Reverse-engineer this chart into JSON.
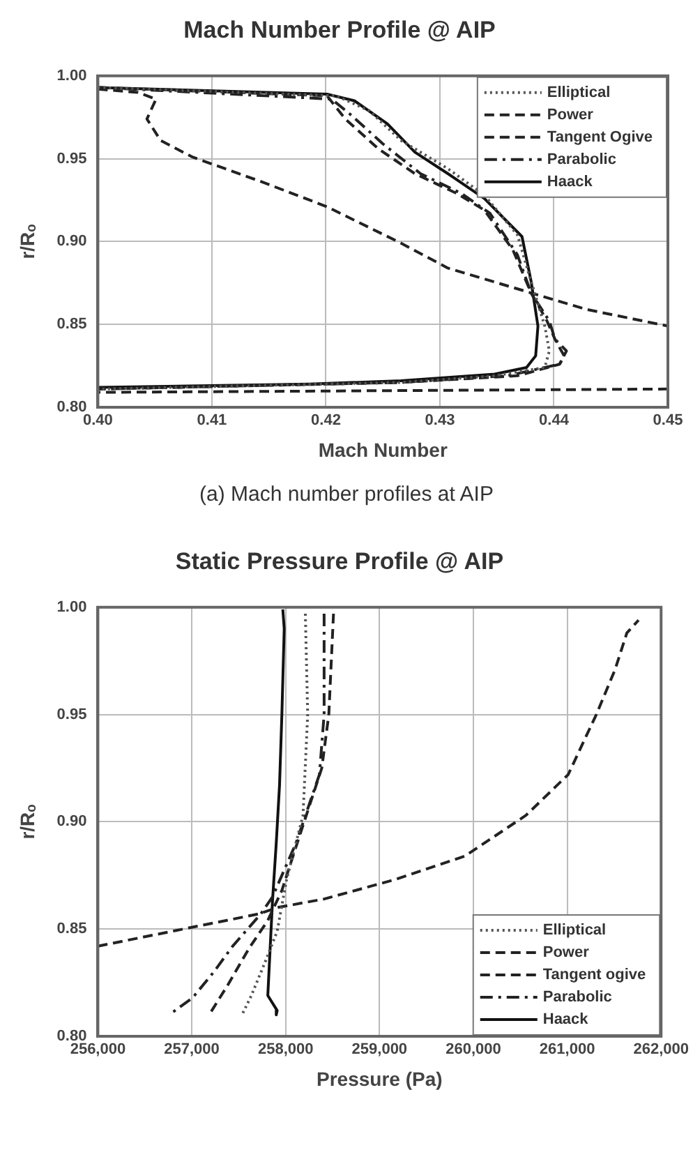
{
  "chart_data": [
    {
      "type": "line",
      "title": "Mach Number Profile @ AIP",
      "xlabel": "Mach Number",
      "ylabel": "r/Rₒ",
      "annotations": [
        "(a) Mach number profiles at AIP"
      ],
      "xlim": [
        0.4,
        0.45
      ],
      "ylim": [
        0.8,
        1.0
      ],
      "xticks": [
        {
          "value": 0.4,
          "label": "0.40"
        },
        {
          "value": 0.41,
          "label": "0.41"
        },
        {
          "value": 0.42,
          "label": "0.42"
        },
        {
          "value": 0.43,
          "label": "0.43"
        },
        {
          "value": 0.44,
          "label": "0.44"
        },
        {
          "value": 0.45,
          "label": "0.45"
        }
      ],
      "yticks": [
        {
          "value": 0.8,
          "label": "0.80"
        },
        {
          "value": 0.85,
          "label": "0.85"
        },
        {
          "value": 0.9,
          "label": "0.90"
        },
        {
          "value": 0.95,
          "label": "0.95"
        },
        {
          "value": 1.0,
          "label": "1.00"
        }
      ],
      "grid": true,
      "legend": "top right",
      "marker": "none",
      "series": [
        {
          "name": "Elliptical",
          "color": "#555555",
          "line_style": "dotted",
          "x": [
            0.4,
            0.4209,
            0.4238,
            0.4266,
            0.4307,
            0.4339,
            0.4368,
            0.438,
            0.4392,
            0.4396,
            0.4392,
            0.4348,
            0.4266,
            0.4
          ],
          "values": [
            0.993,
            0.988,
            0.979,
            0.961,
            0.944,
            0.928,
            0.904,
            0.876,
            0.849,
            0.834,
            0.824,
            0.819,
            0.815,
            0.811
          ]
        },
        {
          "name": "Power",
          "color": "#222222",
          "line_style": "dashed",
          "x": [
            0.4,
            0.4035,
            0.4051,
            0.4043,
            0.4055,
            0.4083,
            0.4144,
            0.4201,
            0.4266,
            0.4307,
            0.438,
            0.4429,
            0.45,
            null,
            0.45,
            0.4
          ],
          "values": [
            0.992,
            0.99,
            0.986,
            0.974,
            0.961,
            0.951,
            0.936,
            0.921,
            0.899,
            0.884,
            0.869,
            0.859,
            0.849,
            null,
            0.811,
            0.809
          ]
        },
        {
          "name": "Tangent Ogive",
          "color": "#222222",
          "line_style": "dashed",
          "x": [
            0.4,
            0.4201,
            0.4217,
            0.4246,
            0.4278,
            0.4315,
            0.4339,
            0.4364,
            0.438,
            0.4394,
            0.4401,
            0.4409,
            0.4405,
            0.4368,
            0.4266,
            0.4
          ],
          "values": [
            0.993,
            0.988,
            0.974,
            0.956,
            0.941,
            0.929,
            0.919,
            0.895,
            0.869,
            0.852,
            0.841,
            0.831,
            0.826,
            0.819,
            0.815,
            0.811
          ]
        },
        {
          "name": "Parabolic",
          "color": "#222222",
          "line_style": "dashdot",
          "x": [
            0.4,
            0.4205,
            0.4221,
            0.425,
            0.4283,
            0.4319,
            0.4344,
            0.4368,
            0.438,
            0.4396,
            0.4401,
            0.4411,
            0.4405,
            0.4359,
            0.4266,
            0.4
          ],
          "values": [
            0.993,
            0.986,
            0.977,
            0.959,
            0.941,
            0.929,
            0.917,
            0.892,
            0.869,
            0.852,
            0.841,
            0.834,
            0.826,
            0.819,
            0.815,
            0.811
          ]
        },
        {
          "name": "Haack",
          "color": "#111111",
          "line_style": "solid",
          "x": [
            0.4,
            0.4201,
            0.4225,
            0.4254,
            0.4278,
            0.4307,
            0.4339,
            0.4372,
            0.438,
            0.4386,
            0.4384,
            0.4376,
            0.4348,
            0.4266,
            0.4185,
            0.4
          ],
          "values": [
            0.993,
            0.989,
            0.985,
            0.971,
            0.954,
            0.941,
            0.926,
            0.903,
            0.876,
            0.849,
            0.831,
            0.824,
            0.82,
            0.816,
            0.814,
            0.812
          ]
        }
      ]
    },
    {
      "type": "line",
      "title": "Static Pressure Profile @ AIP",
      "xlabel": "Pressure (Pa)",
      "ylabel": "r/Rₒ",
      "xlim": [
        256000,
        262000
      ],
      "ylim": [
        0.8,
        1.0
      ],
      "xticks": [
        {
          "value": 256000,
          "label": "256,000"
        },
        {
          "value": 257000,
          "label": "257,000"
        },
        {
          "value": 258000,
          "label": "258,000"
        },
        {
          "value": 259000,
          "label": "259,000"
        },
        {
          "value": 260000,
          "label": "260,000"
        },
        {
          "value": 261000,
          "label": "261,000"
        },
        {
          "value": 262000,
          "label": "262,000"
        }
      ],
      "yticks": [
        {
          "value": 0.8,
          "label": "0.80"
        },
        {
          "value": 0.85,
          "label": "0.85"
        },
        {
          "value": 0.9,
          "label": "0.90"
        },
        {
          "value": 0.95,
          "label": "0.95"
        },
        {
          "value": 1.0,
          "label": "1.00"
        }
      ],
      "grid": true,
      "legend": "bottom right",
      "marker": "none",
      "series": [
        {
          "name": "Elliptical",
          "color": "#555555",
          "line_style": "dotted",
          "x": [
            258210,
            258235,
            258185,
            258010,
            257910,
            257785,
            257635,
            257535
          ],
          "values": [
            0.997,
            0.95,
            0.903,
            0.873,
            0.849,
            0.835,
            0.819,
            0.81
          ]
        },
        {
          "name": "Power",
          "color": "#222222",
          "line_style": "dashed",
          "x": [
            256000,
            256910,
            257710,
            257910,
            258410,
            259160,
            259910,
            260560,
            261010,
            261310,
            261510,
            261635,
            261760
          ],
          "values": [
            0.842,
            0.85,
            0.857,
            0.86,
            0.864,
            0.873,
            0.884,
            0.903,
            0.922,
            0.95,
            0.971,
            0.988,
            0.994
          ]
        },
        {
          "name": "Tangent ogive",
          "color": "#222222",
          "line_style": "dashed",
          "x": [
            258510,
            258460,
            258385,
            258160,
            257960,
            257810,
            257610,
            257385,
            257185
          ],
          "values": [
            0.997,
            0.95,
            0.925,
            0.895,
            0.868,
            0.854,
            0.841,
            0.824,
            0.81
          ]
        },
        {
          "name": "Parabolic",
          "color": "#222222",
          "line_style": "dashdot",
          "x": [
            258410,
            258410,
            258360,
            258110,
            257860,
            257735,
            257435,
            257235,
            257010,
            256760
          ],
          "values": [
            0.997,
            0.95,
            0.922,
            0.89,
            0.865,
            0.857,
            0.842,
            0.83,
            0.818,
            0.81
          ]
        },
        {
          "name": "Haack",
          "color": "#111111",
          "line_style": "solid",
          "x": [
            257970,
            257985,
            257960,
            257935,
            257900,
            257860,
            257835,
            257810,
            257910,
            257900
          ],
          "values": [
            0.999,
            0.99,
            0.95,
            0.917,
            0.89,
            0.863,
            0.841,
            0.819,
            0.812,
            0.81
          ]
        }
      ]
    }
  ]
}
